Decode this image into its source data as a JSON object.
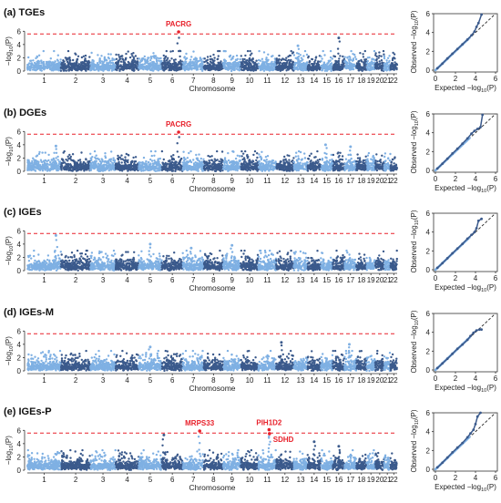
{
  "colors": {
    "light": "#7fb0e3",
    "dark": "#3b5a8c",
    "sig": "#e8202a",
    "threshold": "#e8202a",
    "diag": "#222222"
  },
  "threshold": 5.6,
  "chart_data": {
    "type": "scatter",
    "panels": [
      {
        "id": "a",
        "title": "(a) TGEs",
        "manhattan": {
          "xlabel": "Chromosome",
          "ylabel": "−log10(P)",
          "chromosomes": [
            "1",
            "2",
            "3",
            "4",
            "5",
            "6",
            "7",
            "8",
            "9",
            "10",
            "11",
            "12",
            "13",
            "14",
            "15",
            "16",
            "17",
            "18",
            "19",
            "20",
            "21",
            "22"
          ],
          "ylim": [
            0,
            7
          ],
          "yticks": [
            0,
            2,
            4,
            6
          ],
          "threshold": 5.6,
          "peaks": [
            {
              "chr": 6,
              "pos": 0.8,
              "p": 5.9,
              "gene": "PACRG",
              "sig": true
            },
            {
              "chr": 16,
              "pos": 0.5,
              "p": 5.0
            },
            {
              "chr": 13,
              "pos": 0.3,
              "p": 3.8
            }
          ]
        },
        "qq": {
          "xlabel": "Expected −log10(P)",
          "ylabel": "Observed −log10(P)",
          "xlim": [
            0,
            6
          ],
          "ylim": [
            0,
            6
          ],
          "ticks": [
            0,
            2,
            4,
            6
          ],
          "points": [
            [
              0.2,
              0.2
            ],
            [
              0.7,
              0.7
            ],
            [
              1.2,
              1.25
            ],
            [
              1.7,
              1.75
            ],
            [
              2.2,
              2.25
            ],
            [
              2.7,
              2.75
            ],
            [
              3.2,
              3.25
            ],
            [
              3.6,
              3.7
            ],
            [
              3.9,
              4.1
            ],
            [
              4.1,
              4.6
            ],
            [
              4.3,
              5.0
            ],
            [
              4.6,
              5.9
            ]
          ]
        }
      },
      {
        "id": "b",
        "title": "(b) DGEs",
        "manhattan": {
          "xlabel": "Chromosome",
          "ylabel": "−log10(P)",
          "chromosomes": [
            "1",
            "2",
            "3",
            "4",
            "5",
            "6",
            "7",
            "8",
            "9",
            "10",
            "11",
            "12",
            "13",
            "14",
            "15",
            "16",
            "17",
            "18",
            "19",
            "20",
            "21",
            "22"
          ],
          "ylim": [
            0,
            7
          ],
          "yticks": [
            0,
            2,
            4,
            6
          ],
          "threshold": 5.6,
          "peaks": [
            {
              "chr": 6,
              "pos": 0.8,
              "p": 5.9,
              "gene": "PACRG",
              "sig": true
            },
            {
              "chr": 1,
              "pos": 0.85,
              "p": 3.8
            },
            {
              "chr": 15,
              "pos": 0.4,
              "p": 4.0
            },
            {
              "chr": 17,
              "pos": 0.5,
              "p": 3.7
            }
          ]
        },
        "qq": {
          "xlabel": "Expected −log10(P)",
          "ylabel": "Observed −log10(P)",
          "xlim": [
            0,
            6
          ],
          "ylim": [
            0,
            6
          ],
          "ticks": [
            0,
            2,
            4,
            6
          ],
          "points": [
            [
              0.2,
              0.2
            ],
            [
              0.7,
              0.72
            ],
            [
              1.2,
              1.25
            ],
            [
              1.7,
              1.8
            ],
            [
              2.2,
              2.3
            ],
            [
              2.7,
              2.85
            ],
            [
              3.2,
              3.4
            ],
            [
              3.6,
              3.9
            ],
            [
              3.9,
              4.2
            ],
            [
              4.2,
              4.4
            ],
            [
              4.5,
              4.6
            ],
            [
              4.7,
              5.9
            ]
          ]
        }
      },
      {
        "id": "c",
        "title": "(c) IGEs",
        "manhattan": {
          "xlabel": "Chromosome",
          "ylabel": "−log10(P)",
          "chromosomes": [
            "1",
            "2",
            "3",
            "4",
            "5",
            "6",
            "7",
            "8",
            "9",
            "10",
            "11",
            "12",
            "13",
            "14",
            "15",
            "16",
            "17",
            "18",
            "19",
            "20",
            "21",
            "22"
          ],
          "ylim": [
            0,
            7
          ],
          "yticks": [
            0,
            2,
            4,
            6
          ],
          "threshold": 5.6,
          "peaks": [
            {
              "chr": 1,
              "pos": 0.85,
              "p": 5.3
            },
            {
              "chr": 5,
              "pos": 0.5,
              "p": 4.0
            },
            {
              "chr": 9,
              "pos": 0.5,
              "p": 3.8
            },
            {
              "chr": 7,
              "pos": 0.4,
              "p": 3.4
            }
          ]
        },
        "qq": {
          "xlabel": "Expected −log10(P)",
          "ylabel": "Observed −log10(P)",
          "xlim": [
            0,
            6
          ],
          "ylim": [
            0,
            6
          ],
          "ticks": [
            0,
            2,
            4,
            6
          ],
          "points": [
            [
              0.2,
              0.2
            ],
            [
              0.7,
              0.7
            ],
            [
              1.2,
              1.22
            ],
            [
              1.7,
              1.75
            ],
            [
              2.2,
              2.25
            ],
            [
              2.7,
              2.75
            ],
            [
              3.2,
              3.3
            ],
            [
              3.6,
              3.7
            ],
            [
              3.9,
              4.0
            ],
            [
              4.1,
              4.4
            ],
            [
              4.3,
              5.2
            ],
            [
              4.6,
              5.4
            ]
          ]
        }
      },
      {
        "id": "d",
        "title": "(d) IGEs-M",
        "manhattan": {
          "xlabel": "Chromosome",
          "ylabel": "−log10(P)",
          "chromosomes": [
            "1",
            "2",
            "3",
            "4",
            "5",
            "6",
            "7",
            "8",
            "9",
            "10",
            "11",
            "12",
            "13",
            "14",
            "15",
            "16",
            "17",
            "18",
            "19",
            "20",
            "21",
            "22"
          ],
          "ylim": [
            0,
            7
          ],
          "yticks": [
            0,
            2,
            4,
            6
          ],
          "threshold": 5.6,
          "peaks": [
            {
              "chr": 12,
              "pos": 0.3,
              "p": 4.3
            },
            {
              "chr": 5,
              "pos": 0.5,
              "p": 3.6
            },
            {
              "chr": 17,
              "pos": 0.4,
              "p": 4.0
            }
          ]
        },
        "qq": {
          "xlabel": "Expected −log10(P)",
          "ylabel": "Observed −log10(P)",
          "xlim": [
            0,
            6
          ],
          "ylim": [
            0,
            6
          ],
          "ticks": [
            0,
            2,
            4,
            6
          ],
          "points": [
            [
              0.2,
              0.2
            ],
            [
              0.7,
              0.7
            ],
            [
              1.2,
              1.2
            ],
            [
              1.7,
              1.72
            ],
            [
              2.2,
              2.25
            ],
            [
              2.7,
              2.7
            ],
            [
              3.2,
              3.2
            ],
            [
              3.5,
              3.6
            ],
            [
              3.8,
              3.95
            ],
            [
              4.1,
              4.2
            ],
            [
              4.4,
              4.3
            ],
            [
              4.6,
              4.3
            ]
          ]
        }
      },
      {
        "id": "e",
        "title": "(e) IGEs-P",
        "manhattan": {
          "xlabel": "Chromosome",
          "ylabel": "−log10(P)",
          "chromosomes": [
            "1",
            "2",
            "3",
            "4",
            "5",
            "6",
            "7",
            "8",
            "9",
            "10",
            "11",
            "12",
            "13",
            "14",
            "15",
            "16",
            "17",
            "18",
            "19",
            "20",
            "21",
            "22"
          ],
          "ylim": [
            0,
            7
          ],
          "yticks": [
            0,
            2,
            4,
            6
          ],
          "threshold": 5.6,
          "peaks": [
            {
              "chr": 7,
              "pos": 0.8,
              "p": 5.9,
              "gene": "MRPS33",
              "sig": true
            },
            {
              "chr": 11,
              "pos": 0.6,
              "p": 6.1,
              "gene": "PIH1D2",
              "sig": true
            },
            {
              "chr": 11,
              "pos": 0.62,
              "p": 5.5,
              "gene": "SDHD",
              "sig": true
            },
            {
              "chr": 6,
              "pos": 0.1,
              "p": 5.3
            },
            {
              "chr": 14,
              "pos": 0.5,
              "p": 4.3
            },
            {
              "chr": 16,
              "pos": 0.5,
              "p": 3.6
            }
          ]
        },
        "qq": {
          "xlabel": "Expected −log10(P)",
          "ylabel": "Observed −log10(P)",
          "xlim": [
            0,
            6
          ],
          "ylim": [
            0,
            6
          ],
          "ticks": [
            0,
            2,
            4,
            6
          ],
          "points": [
            [
              0.2,
              0.2
            ],
            [
              0.7,
              0.7
            ],
            [
              1.2,
              1.25
            ],
            [
              1.7,
              1.8
            ],
            [
              2.2,
              2.3
            ],
            [
              2.7,
              2.8
            ],
            [
              3.2,
              3.4
            ],
            [
              3.5,
              3.8
            ],
            [
              3.8,
              4.2
            ],
            [
              4.0,
              4.8
            ],
            [
              4.2,
              5.6
            ],
            [
              4.5,
              6.0
            ]
          ]
        }
      }
    ]
  }
}
